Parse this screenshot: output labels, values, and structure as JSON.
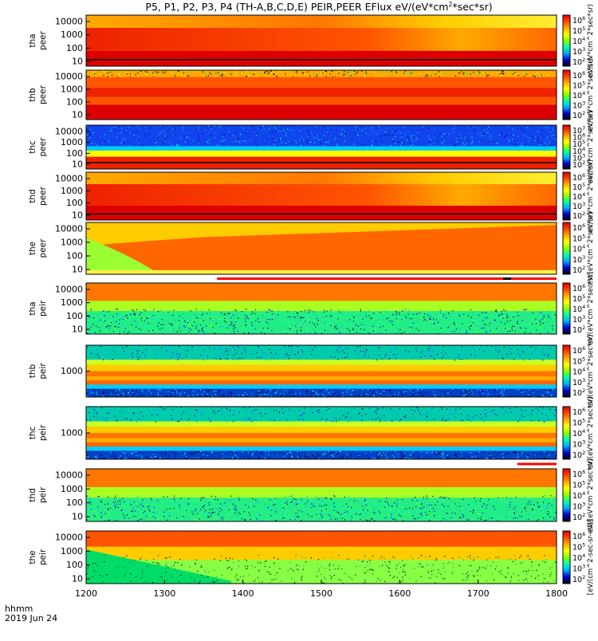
{
  "title": "P5, P1, P2, P3, P4 (TH-A,B,C,D,E) PEIR,PEER EFlux eV/(eV*cm",
  "title_sup": "2",
  "title_tail": "*sec*sr)",
  "footer": {
    "label1": "hhmm",
    "label2": "2019 Jun 24"
  },
  "chart_data": {
    "type": "heatmap",
    "x_axis": {
      "range": [
        1200,
        1800
      ],
      "ticks": [
        "1200",
        "1300",
        "1400",
        "1500",
        "1600",
        "1700",
        "1800"
      ]
    },
    "colormap": [
      "#000000",
      "#0000cc",
      "#00aaff",
      "#00ffaa",
      "#88ff00",
      "#ffff00",
      "#ffaa00",
      "#ff4400",
      "#dd0000"
    ],
    "panels": [
      {
        "label1": "tha",
        "label2": "peer",
        "yticks": [
          "10000",
          "1000",
          "100",
          "10"
        ],
        "cbar_ticks": [
          "10^6",
          "10^5",
          "10^4",
          "10^3",
          "10^2"
        ],
        "cbar_label": "eV/(eV*cm^2*sec*sr)",
        "style": "peer_hot",
        "scale": "log"
      },
      {
        "label1": "thb",
        "label2": "peer",
        "yticks": [
          "10000",
          "1000",
          "100",
          "10"
        ],
        "cbar_ticks": [
          "10^6",
          "10^5",
          "10^4",
          "10^3",
          "10^2"
        ],
        "cbar_label": "eV/(eV*cm^2*sec*sr)",
        "style": "peer_banded",
        "scale": "log"
      },
      {
        "label1": "thc",
        "label2": "peer",
        "yticks": [
          "10000",
          "1000",
          "100",
          "10"
        ],
        "cbar_ticks": [
          "10^7",
          "10^6",
          "10^5",
          "10^4",
          "10^3",
          "10^2"
        ],
        "cbar_label": "eV/(eV*cm^2*sec*sr)",
        "style": "peer_blue_top",
        "scale": "log"
      },
      {
        "label1": "thd",
        "label2": "peer",
        "yticks": [
          "10000",
          "1000",
          "100",
          "10"
        ],
        "cbar_ticks": [
          "10^6",
          "10^5",
          "10^4",
          "10^3",
          "10^2"
        ],
        "cbar_label": "eV/(eV*cm^2*sec*sr)",
        "style": "peer_hot",
        "scale": "log"
      },
      {
        "label1": "the",
        "label2": "peer",
        "yticks": [
          "10000",
          "1000",
          "100",
          "10"
        ],
        "cbar_ticks": [
          "10^6",
          "10^5",
          "10^4",
          "10^3",
          "10^2"
        ],
        "cbar_label": "eV/(eV*cm^2*sec*sr)",
        "style": "peer_the",
        "scale": "log"
      },
      {
        "label1": "tha",
        "label2": "peir",
        "yticks": [
          "10000",
          "1000",
          "100",
          "10"
        ],
        "cbar_ticks": [
          "10^6",
          "10^5",
          "10^4",
          "10^3",
          "10^2"
        ],
        "cbar_label": "eV/(eV*cm^2*sec*sr)",
        "style": "peir_noisy",
        "scale": "log"
      },
      {
        "label1": "thb",
        "label2": "peir",
        "yticks": [
          "1000"
        ],
        "cbar_ticks": [
          "10^6",
          "10^5",
          "10^4",
          "10^3",
          "10^2"
        ],
        "cbar_label": "eV/(eV*cm^2*sec*sr)",
        "style": "peir_bands",
        "scale": "log"
      },
      {
        "label1": "thc",
        "label2": "peir",
        "yticks": [
          "1000"
        ],
        "cbar_ticks": [
          "10^6",
          "10^5",
          "10^4",
          "10^3",
          "10^2"
        ],
        "cbar_label": "eV/(eV*cm^2*sec*sr)",
        "style": "peir_bands",
        "scale": "log"
      },
      {
        "label1": "thd",
        "label2": "peir",
        "yticks": [
          "10000",
          "1000",
          "100",
          "10"
        ],
        "cbar_ticks": [
          "10^6",
          "10^5",
          "10^4",
          "10^3",
          "10^2"
        ],
        "cbar_label": "eV/(eV*cm^2*sec*sr)",
        "style": "peir_noisy",
        "scale": "log"
      },
      {
        "label1": "the",
        "label2": "peir",
        "yticks": [
          "10000",
          "1000",
          "100",
          "10"
        ],
        "cbar_ticks": [
          "10^6",
          "10^5",
          "10^4",
          "10^3",
          "10^2"
        ],
        "cbar_label": "[eV/(cm^2-sec-sr-eV)]",
        "style": "peir_the",
        "scale": "log"
      }
    ],
    "mode_bars": [
      {
        "between_panels": [
          4,
          5
        ],
        "color": "#ff0000",
        "x_start": 1367,
        "x_end": 1800
      },
      {
        "between_panels": [
          4,
          5
        ],
        "color": "#000000",
        "x_start": 1732,
        "x_end": 1742
      },
      {
        "between_panels": [
          7,
          8
        ],
        "color": "#ff0000",
        "x_start": 1750,
        "x_end": 1800
      }
    ]
  }
}
